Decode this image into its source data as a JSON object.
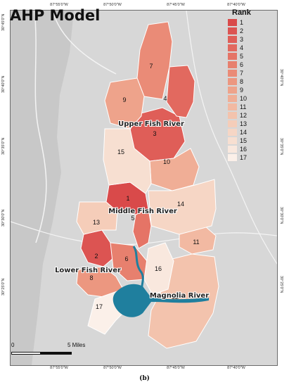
{
  "title": "AHP Model",
  "legend": {
    "title": "Rank",
    "items": [
      {
        "label": "1",
        "color": "#d94a4a"
      },
      {
        "label": "2",
        "color": "#dc5452"
      },
      {
        "label": "3",
        "color": "#df5e58"
      },
      {
        "label": "4",
        "color": "#e2695f"
      },
      {
        "label": "5",
        "color": "#e57466"
      },
      {
        "label": "6",
        "color": "#e7806e"
      },
      {
        "label": "7",
        "color": "#ea8b77"
      },
      {
        "label": "8",
        "color": "#ec9780"
      },
      {
        "label": "9",
        "color": "#eea38b"
      },
      {
        "label": "10",
        "color": "#f0ae96"
      },
      {
        "label": "11",
        "color": "#f2b9a2"
      },
      {
        "label": "12",
        "color": "#f3c3ad"
      },
      {
        "label": "13",
        "color": "#f5cdb9"
      },
      {
        "label": "14",
        "color": "#f6d6c5"
      },
      {
        "label": "15",
        "color": "#f7dfd1"
      },
      {
        "label": "16",
        "color": "#f9e8de"
      },
      {
        "label": "17",
        "color": "#fbf0e9"
      }
    ]
  },
  "regions": [
    {
      "rank": "1",
      "color": "#d94a4a"
    },
    {
      "rank": "2",
      "color": "#dc5452"
    },
    {
      "rank": "3",
      "color": "#df5e58"
    },
    {
      "rank": "4",
      "color": "#e2695f"
    },
    {
      "rank": "5",
      "color": "#e57466"
    },
    {
      "rank": "6",
      "color": "#e7806e"
    },
    {
      "rank": "7",
      "color": "#ea8b77"
    },
    {
      "rank": "8",
      "color": "#ec9780"
    },
    {
      "rank": "9",
      "color": "#eea38b"
    },
    {
      "rank": "10",
      "color": "#f0ae96"
    },
    {
      "rank": "11",
      "color": "#f2b9a2"
    },
    {
      "rank": "12",
      "color": "#f3c3ad"
    },
    {
      "rank": "13",
      "color": "#f5cdb9"
    },
    {
      "rank": "14",
      "color": "#f6d6c5"
    },
    {
      "rank": "15",
      "color": "#f7dfd1"
    },
    {
      "rank": "16",
      "color": "#f9e8de"
    },
    {
      "rank": "17",
      "color": "#fbf0e9"
    }
  ],
  "river_labels": {
    "upper": "Upper Fish River",
    "middle": "Middle Fish River",
    "lower": "Lower Fish River",
    "magnolia": "Magnolia River"
  },
  "graticule": {
    "top": [
      "87°55'0\"W",
      "87°50'0\"W",
      "87°45'0\"W",
      "87°40'0\"W"
    ],
    "bottom": [
      "87°55'0\"W",
      "87°50'0\"W",
      "87°45'0\"W",
      "87°40'0\"W"
    ],
    "left": [
      "30°45'0\"N",
      "30°40'0\"N",
      "30°35'0\"N",
      "30°30'0\"N",
      "30°25'0\"N"
    ],
    "right": [
      "30°40'0\"N",
      "30°35'0\"N",
      "30°30'0\"N",
      "30°25'0\"N"
    ]
  },
  "scale_bar": {
    "start": "0",
    "end": "5 Miles"
  },
  "figure_label": "(b)",
  "colors": {
    "land": "#d7d7d7",
    "water": "#1f7f9e",
    "roads": "#f4f4f4",
    "boundary": "#ffffff"
  }
}
